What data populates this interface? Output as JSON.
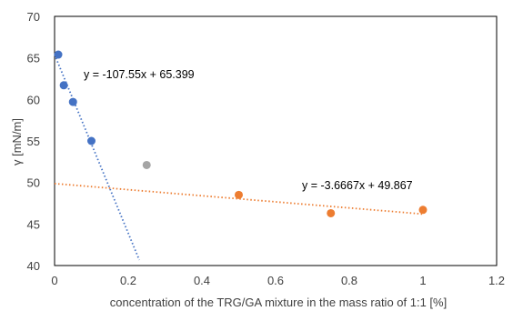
{
  "chart_data": {
    "type": "scatter",
    "xlabel": "concentration of the TRG/GA mixture in the mass ratio of 1:1 [%]",
    "ylabel": "γ [mN/m]",
    "xlim": [
      0,
      1.2
    ],
    "ylim": [
      40,
      70
    ],
    "x_ticks": [
      0,
      0.2,
      0.4,
      0.6,
      0.8,
      1,
      1.2
    ],
    "x_tick_labels": [
      "0",
      "0.2",
      "0.4",
      "0.6",
      "0.8",
      "1",
      "1.2"
    ],
    "y_ticks": [
      40,
      45,
      50,
      55,
      60,
      65,
      70
    ],
    "y_tick_labels": [
      "40",
      "45",
      "50",
      "55",
      "60",
      "65",
      "70"
    ],
    "grid": false,
    "series": [
      {
        "color": "#4472C4",
        "points": [
          [
            0.01,
            65.4
          ],
          [
            0.025,
            61.7
          ],
          [
            0.05,
            59.7
          ],
          [
            0.1,
            55.0
          ]
        ],
        "trendline": {
          "slope": -107.55,
          "intercept": 65.399,
          "x_range": [
            0,
            0.23
          ],
          "equation": "y = -107.55x + 65.399"
        }
      },
      {
        "color": "#A5A5A5",
        "points": [
          [
            0.25,
            52.1
          ]
        ]
      },
      {
        "color": "#ED7D31",
        "points": [
          [
            0.5,
            48.5
          ],
          [
            0.75,
            46.3
          ],
          [
            1.0,
            46.7
          ]
        ],
        "trendline": {
          "slope": -3.6667,
          "intercept": 49.867,
          "x_range": [
            0,
            1.0
          ],
          "equation": "y = -3.6667x + 49.867"
        }
      }
    ]
  }
}
